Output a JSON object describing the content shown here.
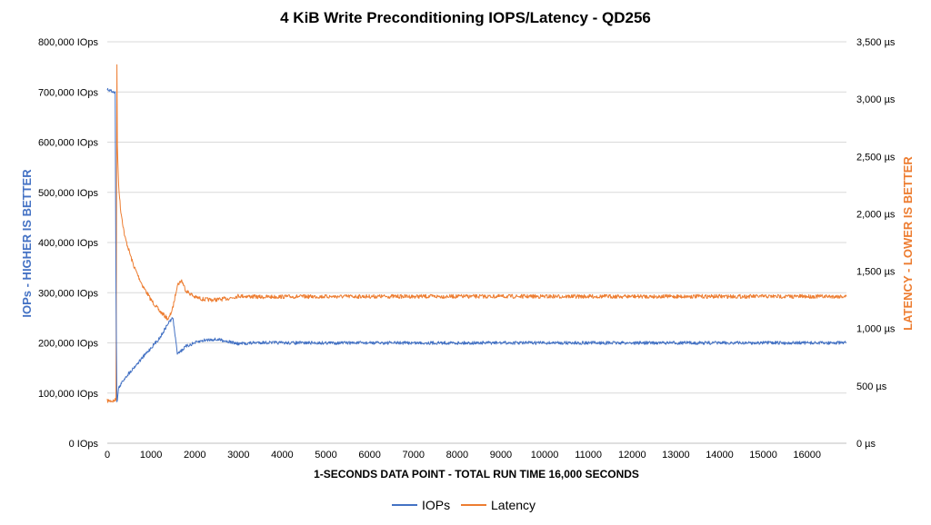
{
  "chart_data": {
    "type": "line",
    "title": "4 KiB Write Preconditioning IOPS/Latency - QD256",
    "xlabel": "1-SECONDS DATA POINT - TOTAL RUN TIME 16,000 SECONDS",
    "ylabel_left": "IOPs - HIGHER IS BETTER",
    "ylabel_right": "LATENCY - LOWER IS BETTER",
    "xlim": [
      0,
      16900
    ],
    "ylim_left": [
      0,
      800000
    ],
    "ylim_right": [
      0,
      3500
    ],
    "x_ticks": [
      "0",
      "1000",
      "2000",
      "3000",
      "4000",
      "5000",
      "6000",
      "7000",
      "8000",
      "9000",
      "10000",
      "11000",
      "12000",
      "13000",
      "14000",
      "15000",
      "16000"
    ],
    "y_left_ticks": [
      "0 IOps",
      "100,000 IOps",
      "200,000 IOps",
      "300,000 IOps",
      "400,000 IOps",
      "500,000 IOps",
      "600,000 IOps",
      "700,000 IOps",
      "800,000 IOps"
    ],
    "y_right_ticks": [
      "0 µs",
      "500 µs",
      "1,000 µs",
      "1,500 µs",
      "2,000 µs",
      "2,500 µs",
      "3,000 µs",
      "3,500 µs"
    ],
    "legend": [
      "IOPs",
      "Latency"
    ],
    "grid": true,
    "colors": {
      "iops": "#4472C4",
      "latency": "#ED7D31"
    },
    "series": [
      {
        "name": "IOPs",
        "axis": "left",
        "x": [
          0,
          100,
          180,
          200,
          220,
          260,
          400,
          600,
          800,
          1000,
          1200,
          1400,
          1500,
          1550,
          1600,
          1700,
          1800,
          2000,
          2200,
          2400,
          2600,
          2800,
          3000,
          3500,
          4000,
          6000,
          8000,
          10000,
          12000,
          14000,
          16000,
          16900
        ],
        "values": [
          705000,
          702000,
          700000,
          300000,
          80000,
          110000,
          130000,
          150000,
          170000,
          190000,
          210000,
          240000,
          250000,
          215000,
          180000,
          185000,
          193000,
          200000,
          205000,
          207000,
          206000,
          202000,
          198000,
          201000,
          200000,
          200000,
          200000,
          200000,
          200000,
          200000,
          200000,
          200000
        ]
      },
      {
        "name": "Latency",
        "axis": "right",
        "x": [
          0,
          150,
          200,
          220,
          230,
          260,
          300,
          400,
          600,
          800,
          1000,
          1200,
          1400,
          1500,
          1600,
          1700,
          1800,
          2000,
          2200,
          2400,
          2600,
          2800,
          3000,
          3500,
          4000,
          6000,
          8000,
          10000,
          12000,
          14000,
          16000,
          16900
        ],
        "values": [
          370,
          370,
          380,
          3300,
          2600,
          2250,
          2050,
          1800,
          1550,
          1380,
          1250,
          1150,
          1080,
          1180,
          1380,
          1420,
          1330,
          1275,
          1255,
          1250,
          1255,
          1265,
          1285,
          1275,
          1278,
          1280,
          1280,
          1280,
          1280,
          1280,
          1280,
          1280
        ]
      }
    ]
  }
}
